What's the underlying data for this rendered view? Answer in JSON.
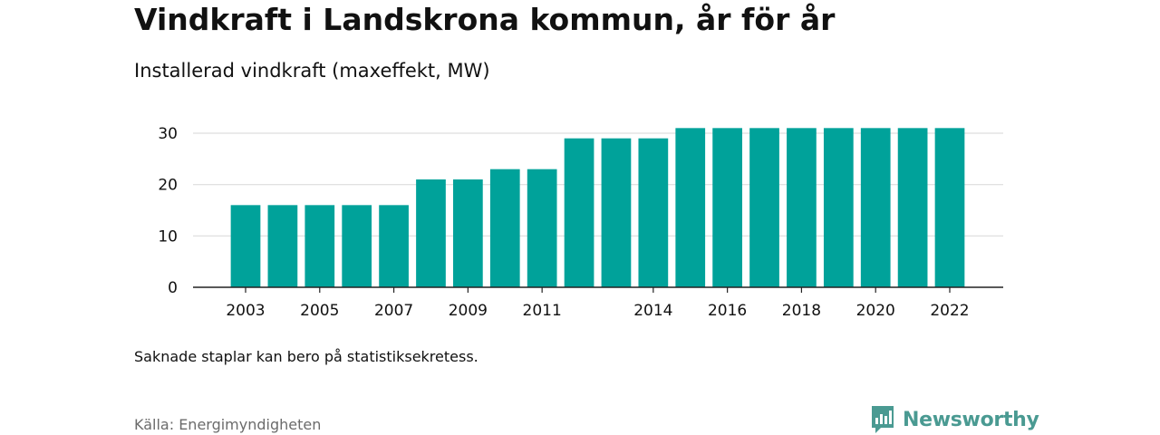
{
  "title": "Vindkraft i Landskrona kommun, år för år",
  "subtitle": "Installerad vindkraft (maxeffekt, MW)",
  "note": "Saknade staplar kan bero på statistiksekretess.",
  "source": "Källa: Energimyndigheten",
  "brand": {
    "name": "Newsworthy",
    "icon": "newsworthy-logo-icon",
    "color": "#4a9a92"
  },
  "colors": {
    "bar": "#00a29a",
    "grid": "#dddddd",
    "axis": "#222222"
  },
  "chart_data": {
    "type": "bar",
    "categories": [
      "2003",
      "2004",
      "2005",
      "2006",
      "2007",
      "2008",
      "2009",
      "2010",
      "2011",
      "2012",
      "2013",
      "2014",
      "2015",
      "2016",
      "2017",
      "2018",
      "2019",
      "2020",
      "2021",
      "2022"
    ],
    "x_tick_labels": [
      "2003",
      "2005",
      "2007",
      "2009",
      "2011",
      "2014",
      "2016",
      "2018",
      "2020",
      "2022"
    ],
    "values": [
      16,
      16,
      16,
      16,
      16,
      21,
      21,
      23,
      23,
      29,
      29,
      29,
      31,
      31,
      31,
      31,
      31,
      31,
      31,
      31
    ],
    "y_ticks": [
      0,
      10,
      20,
      30
    ],
    "ylim": [
      0,
      33
    ],
    "grid": true,
    "title": "Vindkraft i Landskrona kommun, år för år",
    "subtitle": "Installerad vindkraft (maxeffekt, MW)",
    "xlabel": "",
    "ylabel": ""
  }
}
